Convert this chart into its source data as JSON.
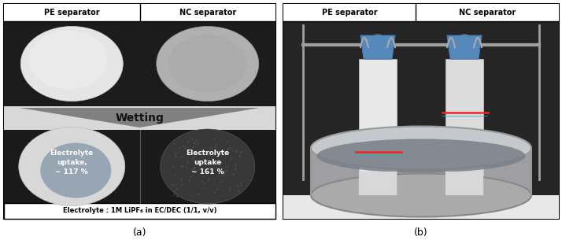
{
  "fig_width": 7.14,
  "fig_height": 3.1,
  "dpi": 100,
  "background_color": "#ffffff",
  "panel_a": {
    "label": "(a)",
    "top_labels": [
      "PE separator",
      "NC separator"
    ],
    "top_row_bg": "#1a1a1a",
    "disc_left_color": "#e0e0e0",
    "disc_right_color": "#b0b0b0",
    "wetting_bg_left": "#d0d0d0",
    "wetting_bg_right": "#e8e8e8",
    "arrow_bg": "#cccccc",
    "bottom_row_bg": "#1a1a1a",
    "bottom_disc_left_color": "#c8c8c8",
    "bottom_disc_left_inner": "#8898aa",
    "bottom_disc_right_color": "#3a3a3a",
    "caption_text": "Electrolyte : 1M LiPF₆ in EC/DEC (1/1, v/v)"
  },
  "panel_b": {
    "label": "(b)",
    "top_labels": [
      "PE separator",
      "NC separator"
    ],
    "bg_color": "#2a2a2a",
    "strip_left_color": "#e8e8e8",
    "strip_right_color": "#d8d8d8",
    "clip_color": "#6699cc",
    "beaker_color": "#c0c8d0",
    "liquid_color": "#606870",
    "frame_color": "#909090",
    "red_dot_color": "#ff2020"
  }
}
